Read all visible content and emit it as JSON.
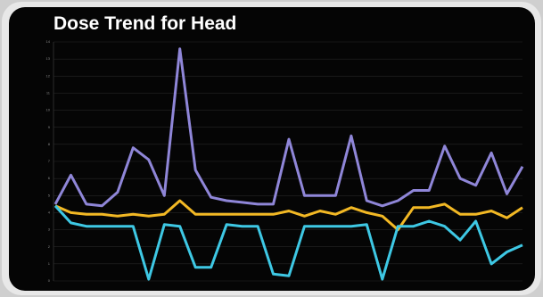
{
  "chart_data": {
    "type": "line",
    "title": "Dose Trend for Head",
    "ylim": [
      0,
      14
    ],
    "yticks": [
      0,
      1,
      2,
      3,
      4,
      5,
      6,
      7,
      8,
      9,
      10,
      11,
      12,
      13,
      14
    ],
    "grid": true,
    "series": [
      {
        "color": "#8f86d8",
        "values": [
          4.5,
          6.2,
          4.5,
          4.4,
          5.2,
          7.8,
          7.1,
          5.0,
          13.6,
          6.5,
          4.9,
          4.7,
          4.6,
          4.5,
          4.5,
          8.3,
          5.0,
          5.0,
          5.0,
          8.5,
          4.7,
          4.4,
          4.7,
          5.3,
          5.3,
          7.9,
          6.0,
          5.6,
          7.5,
          5.1,
          6.7
        ]
      },
      {
        "color": "#f2b824",
        "values": [
          4.4,
          4.0,
          3.9,
          3.9,
          3.8,
          3.9,
          3.8,
          3.9,
          4.7,
          3.9,
          3.9,
          3.9,
          3.9,
          3.9,
          3.9,
          4.1,
          3.8,
          4.1,
          3.9,
          4.3,
          4.0,
          3.8,
          3.0,
          4.3,
          4.3,
          4.5,
          3.9,
          3.9,
          4.1,
          3.7,
          4.3
        ]
      },
      {
        "color": "#3ec8e4",
        "values": [
          4.4,
          3.4,
          3.2,
          3.2,
          3.2,
          3.2,
          0.1,
          3.3,
          3.2,
          0.8,
          0.8,
          3.3,
          3.2,
          3.2,
          0.4,
          0.3,
          3.2,
          3.2,
          3.2,
          3.2,
          3.3,
          0.1,
          3.2,
          3.2,
          3.5,
          3.2,
          2.4,
          3.5,
          1.0,
          1.7,
          2.1
        ]
      }
    ]
  }
}
